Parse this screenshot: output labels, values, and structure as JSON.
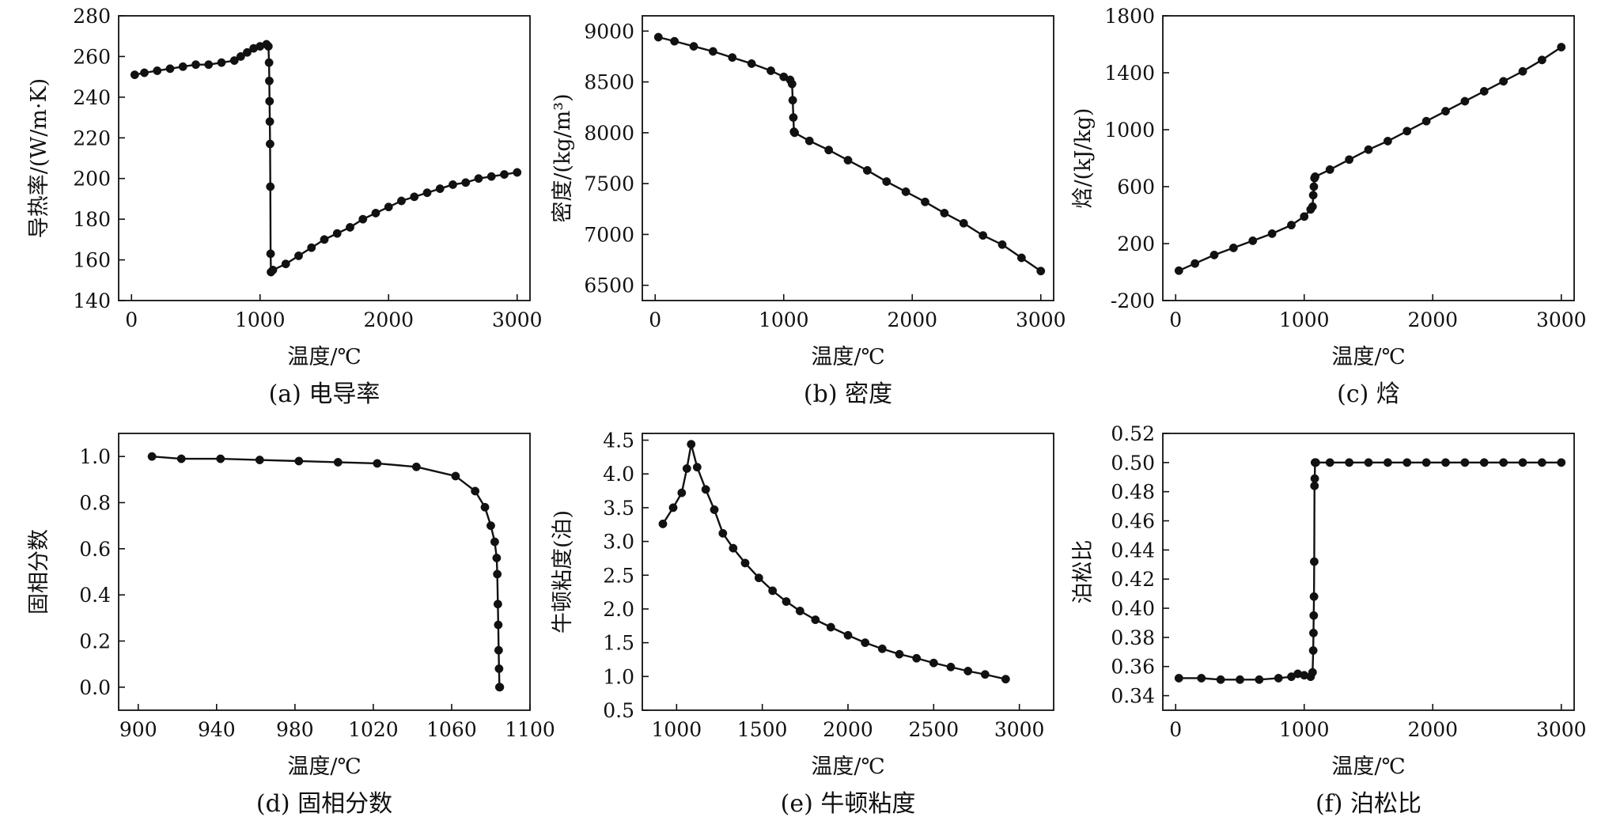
{
  "chart_data": [
    {
      "id": "a",
      "type": "line",
      "title": "(a) 电导率",
      "xlabel": "温度/℃",
      "ylabel": "导热率/(W/m·K)",
      "xlim": [
        -100,
        3100
      ],
      "ylim": [
        140,
        280
      ],
      "xticks": [
        0,
        1000,
        2000,
        3000
      ],
      "yticks": [
        140,
        160,
        180,
        200,
        220,
        240,
        260,
        280
      ],
      "grid": false,
      "legend": "none",
      "series": [
        {
          "x": [
            25,
            100,
            200,
            300,
            400,
            500,
            600,
            700,
            800,
            850,
            900,
            950,
            1000,
            1050,
            1065,
            1070,
            1072,
            1074,
            1076,
            1078,
            1080,
            1082,
            1085,
            1100,
            1200,
            1300,
            1400,
            1500,
            1600,
            1700,
            1800,
            1900,
            2000,
            2100,
            2200,
            2300,
            2400,
            2500,
            2600,
            2700,
            2800,
            2900,
            3000
          ],
          "values": [
            251,
            252,
            253,
            254,
            255,
            256,
            256,
            257,
            258,
            260,
            262,
            264,
            265,
            266,
            265,
            257,
            248,
            238,
            228,
            217,
            196,
            163,
            154,
            155,
            158,
            162,
            166,
            170,
            173,
            176,
            180,
            183,
            186,
            189,
            191,
            193,
            195,
            197,
            198,
            200,
            201,
            202,
            203
          ]
        }
      ]
    },
    {
      "id": "b",
      "type": "line",
      "title": "(b) 密度",
      "xlabel": "温度/℃",
      "ylabel": "密度/(kg/m³)",
      "xlim": [
        -100,
        3100
      ],
      "ylim": [
        6350,
        9150
      ],
      "xticks": [
        0,
        1000,
        2000,
        3000
      ],
      "yticks": [
        6500,
        7000,
        7500,
        8000,
        8500,
        9000
      ],
      "grid": false,
      "legend": "none",
      "series": [
        {
          "x": [
            25,
            150,
            300,
            450,
            600,
            750,
            900,
            1000,
            1050,
            1065,
            1070,
            1075,
            1080,
            1085,
            1200,
            1350,
            1500,
            1650,
            1800,
            1950,
            2100,
            2250,
            2400,
            2550,
            2700,
            2850,
            3000
          ],
          "values": [
            8940,
            8900,
            8850,
            8800,
            8740,
            8680,
            8610,
            8550,
            8520,
            8480,
            8320,
            8150,
            8010,
            8000,
            7920,
            7830,
            7730,
            7630,
            7520,
            7420,
            7320,
            7210,
            7110,
            6990,
            6900,
            6770,
            6640
          ]
        }
      ]
    },
    {
      "id": "c",
      "type": "line",
      "title": "(c) 焓",
      "xlabel": "温度/℃",
      "ylabel": "焓/(kJ/kg)",
      "xlim": [
        -100,
        3100
      ],
      "ylim": [
        -200,
        1800
      ],
      "xticks": [
        0,
        1000,
        2000,
        3000
      ],
      "yticks": [
        -200,
        200,
        600,
        1000,
        1400,
        1800
      ],
      "ytick_labels": [
        "-200",
        "200",
        "600",
        "1000",
        "1400",
        "1800"
      ],
      "grid": false,
      "legend": "none",
      "series": [
        {
          "x": [
            25,
            150,
            300,
            450,
            600,
            750,
            900,
            1000,
            1050,
            1065,
            1070,
            1075,
            1080,
            1085,
            1200,
            1350,
            1500,
            1650,
            1800,
            1950,
            2100,
            2250,
            2400,
            2550,
            2700,
            2850,
            3000
          ],
          "values": [
            10,
            60,
            120,
            170,
            220,
            270,
            330,
            390,
            440,
            460,
            540,
            600,
            660,
            670,
            720,
            790,
            860,
            920,
            990,
            1060,
            1130,
            1200,
            1270,
            1340,
            1410,
            1490,
            1580
          ]
        }
      ]
    },
    {
      "id": "d",
      "type": "line",
      "title": "(d) 固相分数",
      "xlabel": "温度/℃",
      "ylabel": "固相分数",
      "xlim": [
        890,
        1100
      ],
      "ylim": [
        -0.1,
        1.1
      ],
      "xticks": [
        900,
        940,
        980,
        1020,
        1060,
        1100
      ],
      "yticks": [
        0.0,
        0.2,
        0.4,
        0.6,
        0.8,
        1.0
      ],
      "ytick_labels": [
        "0.0",
        "0.2",
        "0.4",
        "0.6",
        "0.8",
        "1.0"
      ],
      "grid": false,
      "legend": "none",
      "series": [
        {
          "x": [
            907,
            922,
            942,
            962,
            982,
            1002,
            1022,
            1042,
            1062,
            1072,
            1077,
            1080,
            1082,
            1083,
            1083.3,
            1083.6,
            1083.8,
            1084,
            1084.2,
            1084.4,
            1084.6
          ],
          "values": [
            1.0,
            0.99,
            0.99,
            0.985,
            0.98,
            0.975,
            0.97,
            0.955,
            0.915,
            0.85,
            0.78,
            0.7,
            0.63,
            0.56,
            0.49,
            0.36,
            0.27,
            0.16,
            0.08,
            0.0,
            0.0
          ]
        }
      ]
    },
    {
      "id": "e",
      "type": "line",
      "title": "(e) 牛顿粘度",
      "xlabel": "温度/℃",
      "ylabel": "牛顿粘度(泊)",
      "xlim": [
        800,
        3200
      ],
      "ylim": [
        0.5,
        4.6
      ],
      "xticks": [
        1000,
        1500,
        2000,
        2500,
        3000
      ],
      "yticks": [
        0.5,
        1.0,
        1.5,
        2.0,
        2.5,
        3.0,
        3.5,
        4.0,
        4.5
      ],
      "ytick_labels": [
        "0.5",
        "1.0",
        "1.5",
        "2.0",
        "2.5",
        "3.0",
        "3.5",
        "4.0",
        "4.5"
      ],
      "grid": false,
      "legend": "none",
      "series": [
        {
          "x": [
            920,
            980,
            1030,
            1060,
            1085,
            1120,
            1170,
            1220,
            1270,
            1330,
            1400,
            1480,
            1560,
            1640,
            1720,
            1810,
            1900,
            2000,
            2100,
            2200,
            2300,
            2400,
            2500,
            2600,
            2700,
            2800,
            2920
          ],
          "values": [
            3.26,
            3.5,
            3.72,
            4.08,
            4.44,
            4.1,
            3.77,
            3.47,
            3.12,
            2.9,
            2.68,
            2.46,
            2.27,
            2.11,
            1.97,
            1.84,
            1.73,
            1.61,
            1.5,
            1.41,
            1.33,
            1.27,
            1.2,
            1.14,
            1.08,
            1.03,
            0.96
          ]
        }
      ]
    },
    {
      "id": "f",
      "type": "line",
      "title": "(f) 泊松比",
      "xlabel": "温度/℃",
      "ylabel": "泊松比",
      "xlim": [
        -100,
        3100
      ],
      "ylim": [
        0.33,
        0.52
      ],
      "xticks": [
        0,
        1000,
        2000,
        3000
      ],
      "yticks": [
        0.34,
        0.36,
        0.38,
        0.4,
        0.42,
        0.44,
        0.46,
        0.48,
        0.5,
        0.52
      ],
      "ytick_labels": [
        "0.34",
        "0.36",
        "0.38",
        "0.40",
        "0.42",
        "0.44",
        "0.46",
        "0.48",
        "0.50",
        "0.52"
      ],
      "grid": false,
      "legend": "none",
      "series": [
        {
          "x": [
            25,
            200,
            350,
            500,
            650,
            800,
            900,
            950,
            1000,
            1050,
            1065,
            1070,
            1072,
            1074,
            1076,
            1078,
            1080,
            1082,
            1084,
            1086,
            1090,
            1200,
            1350,
            1500,
            1650,
            1800,
            1950,
            2100,
            2250,
            2400,
            2550,
            2700,
            2850,
            3000
          ],
          "values": [
            0.352,
            0.352,
            0.351,
            0.351,
            0.351,
            0.352,
            0.353,
            0.355,
            0.354,
            0.353,
            0.356,
            0.371,
            0.383,
            0.395,
            0.408,
            0.432,
            0.484,
            0.489,
            0.5,
            0.5,
            0.5,
            0.5,
            0.5,
            0.5,
            0.5,
            0.5,
            0.5,
            0.5,
            0.5,
            0.5,
            0.5,
            0.5,
            0.5,
            0.5
          ]
        }
      ]
    }
  ]
}
